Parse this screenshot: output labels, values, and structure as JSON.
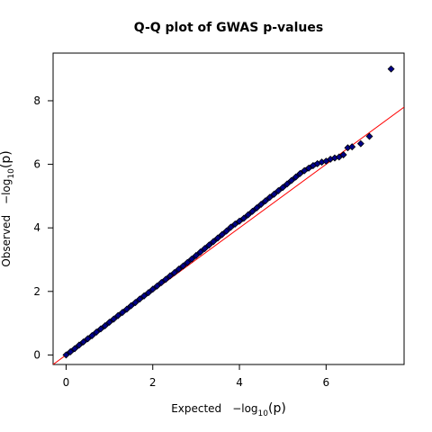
{
  "chart_data": {
    "type": "scatter",
    "title": "Q-Q plot of GWAS p-values",
    "xlabel": {
      "prefix": "Expected",
      "expr": "−log",
      "sub": "10",
      "arg": "(p)"
    },
    "ylabel": {
      "prefix": "Observed",
      "expr": "−log",
      "sub": "10",
      "arg": "(p)"
    },
    "xlim": [
      -0.3,
      7.8
    ],
    "ylim": [
      -0.3,
      9.5
    ],
    "x_ticks": [
      0,
      2,
      4,
      6
    ],
    "y_ticks": [
      0,
      2,
      4,
      6,
      8
    ],
    "grid": false,
    "reference_line": {
      "slope": 1,
      "intercept": 0,
      "color": "#ff0000"
    },
    "colors": {
      "point_fill": "#00008b",
      "point_edge": "#000000",
      "line": "#ff0000"
    },
    "series": [
      {
        "x": [
          0.0,
          0.1,
          0.2,
          0.3,
          0.4,
          0.5,
          0.6,
          0.7,
          0.8,
          0.9,
          1.0,
          1.1,
          1.2,
          1.3,
          1.4,
          1.5,
          1.6,
          1.7,
          1.8,
          1.9,
          2.0,
          2.1,
          2.2,
          2.3,
          2.4,
          2.5,
          2.6,
          2.7,
          2.8,
          2.9,
          3.0,
          3.1,
          3.2,
          3.3,
          3.4,
          3.5,
          3.6,
          3.7,
          3.8,
          3.9,
          4.0,
          4.1,
          4.2,
          4.3,
          4.4,
          4.5,
          4.6,
          4.7,
          4.8,
          4.9,
          5.0,
          5.1,
          5.2,
          5.3,
          5.4,
          5.5,
          5.6,
          5.7,
          5.8,
          5.9,
          6.0,
          6.1,
          6.2,
          6.3,
          6.4,
          6.5,
          6.6,
          6.8,
          7.0,
          7.5
        ],
        "y": [
          0.0,
          0.1,
          0.2,
          0.31,
          0.41,
          0.51,
          0.61,
          0.72,
          0.82,
          0.92,
          1.03,
          1.13,
          1.24,
          1.34,
          1.44,
          1.55,
          1.65,
          1.76,
          1.86,
          1.96,
          2.07,
          2.17,
          2.28,
          2.38,
          2.49,
          2.59,
          2.7,
          2.8,
          2.91,
          3.02,
          3.13,
          3.24,
          3.35,
          3.46,
          3.57,
          3.68,
          3.79,
          3.9,
          4.02,
          4.12,
          4.21,
          4.3,
          4.41,
          4.52,
          4.63,
          4.74,
          4.85,
          4.96,
          5.06,
          5.17,
          5.27,
          5.38,
          5.49,
          5.6,
          5.71,
          5.8,
          5.88,
          5.96,
          6.02,
          6.07,
          6.1,
          6.16,
          6.2,
          6.23,
          6.3,
          6.52,
          6.55,
          6.65,
          6.88,
          9.0
        ]
      }
    ]
  }
}
